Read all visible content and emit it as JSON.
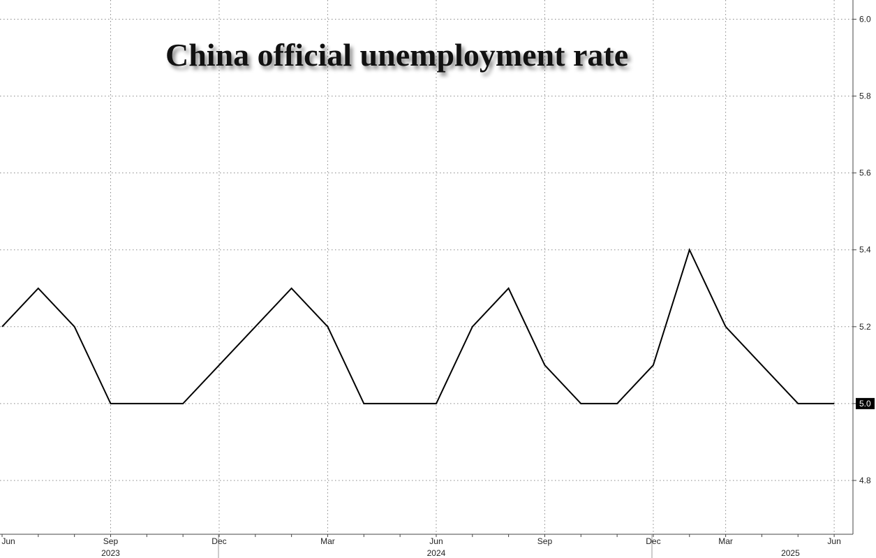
{
  "chart_data": {
    "type": "line",
    "title": "China official unemployment rate",
    "categories": [
      "Jun",
      null,
      null,
      "Sep",
      null,
      null,
      "Dec",
      null,
      null,
      "Mar",
      null,
      null,
      "Jun",
      null,
      null,
      "Sep",
      null,
      null,
      "Dec",
      null,
      "Mar",
      null,
      null,
      "Jun"
    ],
    "years": [
      "2023",
      "2024",
      "2025"
    ],
    "series": [
      {
        "color": "#000000",
        "values": [
          5.2,
          5.3,
          5.2,
          5.0,
          5.0,
          5.0,
          5.1,
          5.2,
          5.3,
          5.2,
          5.0,
          5.0,
          5.0,
          5.2,
          5.3,
          5.1,
          5.0,
          5.0,
          5.1,
          5.4,
          5.2,
          5.1,
          5.0,
          5.0
        ],
        "value_labels": [
          null,
          null,
          null,
          null,
          null,
          null,
          null,
          null,
          null,
          null,
          null,
          null,
          null,
          null,
          null,
          null,
          null,
          null,
          null,
          null,
          null,
          null,
          null,
          "5.0"
        ]
      }
    ],
    "ylim": [
      4.66,
      6.05
    ],
    "yticks": [
      4.8,
      {
        "value": 5.0,
        "label": "5.0"
      },
      5.2,
      5.4,
      5.6,
      5.8,
      {
        "value": 6.0,
        "label": "6.0"
      }
    ],
    "grid": true
  }
}
